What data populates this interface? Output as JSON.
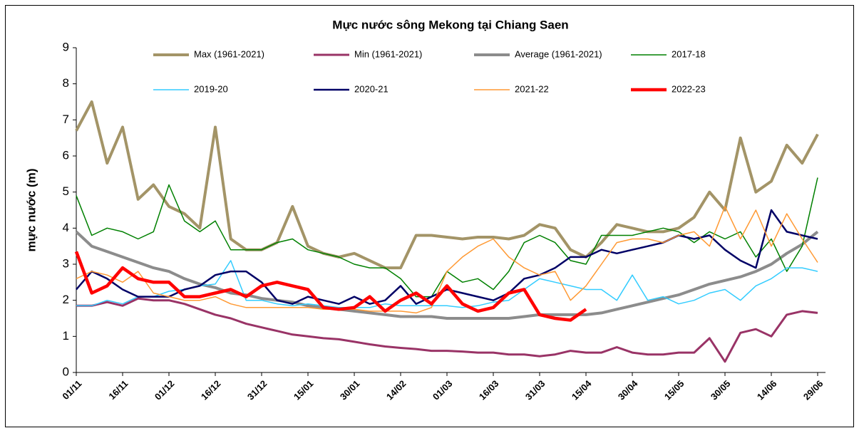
{
  "chart_data": {
    "type": "line",
    "title": "Mực nước sông Mekong tại Chiang Saen",
    "y_label": "mực  nước (m)",
    "categories": [
      "01/11",
      null,
      null,
      "16/11",
      null,
      null,
      "01/12",
      null,
      null,
      "16/12",
      null,
      null,
      "31/12",
      null,
      null,
      "15/01",
      null,
      null,
      "30/01",
      null,
      null,
      "14/02",
      null,
      null,
      "01/03",
      null,
      null,
      "16/03",
      null,
      null,
      "31/03",
      null,
      null,
      "15/04",
      null,
      null,
      "30/04",
      null,
      null,
      "15/05",
      null,
      null,
      "30/05",
      null,
      null,
      "14/06",
      null,
      null,
      "29/06"
    ],
    "ylim": [
      0,
      9
    ],
    "yticks": [
      0,
      1,
      2,
      3,
      4,
      5,
      6,
      7,
      8,
      9
    ],
    "grid": false,
    "legend": "top",
    "series": [
      {
        "name": "Max (1961-2021)",
        "color": "#a39467",
        "values": [
          6.7,
          7.5,
          5.8,
          6.8,
          4.8,
          5.2,
          4.6,
          4.4,
          4.0,
          6.8,
          3.7,
          3.4,
          3.4,
          3.6,
          4.6,
          3.5,
          3.3,
          3.2,
          3.3,
          3.1,
          2.9,
          2.9,
          3.8,
          3.8,
          3.75,
          3.7,
          3.75,
          3.75,
          3.7,
          3.8,
          4.1,
          4.0,
          3.4,
          3.2,
          3.6,
          4.1,
          4.0,
          3.9,
          3.9,
          4.0,
          4.3,
          5.0,
          4.5,
          6.5,
          5.0,
          5.3,
          6.3,
          5.8,
          6.6
        ]
      },
      {
        "name": "Min (1961-2021)",
        "color": "#993366",
        "values": [
          1.85,
          1.85,
          1.95,
          1.85,
          2.05,
          2.0,
          2.0,
          1.9,
          1.75,
          1.6,
          1.5,
          1.35,
          1.25,
          1.15,
          1.05,
          1.0,
          0.95,
          0.92,
          0.85,
          0.78,
          0.72,
          0.68,
          0.65,
          0.6,
          0.6,
          0.58,
          0.55,
          0.55,
          0.5,
          0.5,
          0.45,
          0.5,
          0.6,
          0.55,
          0.55,
          0.7,
          0.55,
          0.5,
          0.5,
          0.55,
          0.55,
          0.95,
          0.3,
          1.1,
          1.2,
          1.0,
          1.6,
          1.7,
          1.65
        ]
      },
      {
        "name": "Average (1961-2021)",
        "color": "#8c8c8c",
        "values": [
          3.9,
          3.5,
          3.35,
          3.2,
          3.05,
          2.9,
          2.8,
          2.6,
          2.45,
          2.35,
          2.2,
          2.15,
          2.05,
          2.0,
          1.95,
          1.85,
          1.8,
          1.75,
          1.7,
          1.65,
          1.6,
          1.55,
          1.55,
          1.55,
          1.5,
          1.5,
          1.5,
          1.5,
          1.5,
          1.55,
          1.6,
          1.6,
          1.6,
          1.6,
          1.65,
          1.75,
          1.85,
          1.95,
          2.05,
          2.15,
          2.3,
          2.45,
          2.55,
          2.65,
          2.8,
          3.0,
          3.3,
          3.55,
          3.9
        ]
      },
      {
        "name": "2017-18",
        "color": "#008000",
        "values": [
          4.9,
          3.8,
          4.0,
          3.9,
          3.7,
          3.9,
          5.2,
          4.2,
          3.9,
          4.2,
          3.4,
          3.4,
          3.4,
          3.6,
          3.7,
          3.4,
          3.3,
          3.2,
          3.0,
          2.9,
          2.9,
          2.6,
          2.1,
          2.1,
          2.8,
          2.5,
          2.6,
          2.3,
          2.8,
          3.6,
          3.8,
          3.6,
          3.1,
          3.0,
          3.8,
          3.8,
          3.8,
          3.9,
          4.0,
          3.9,
          3.6,
          3.9,
          3.7,
          3.9,
          3.2,
          3.7,
          2.8,
          3.5,
          5.4
        ]
      },
      {
        "name": "2019-20",
        "color": "#33ccff",
        "values": [
          1.85,
          1.85,
          2.0,
          1.9,
          2.1,
          2.1,
          2.25,
          2.3,
          2.4,
          2.45,
          3.1,
          2.0,
          2.0,
          1.9,
          1.85,
          1.9,
          1.85,
          1.8,
          1.8,
          1.8,
          1.9,
          1.85,
          1.85,
          1.85,
          1.85,
          1.8,
          1.85,
          1.95,
          2.0,
          2.3,
          2.6,
          2.5,
          2.4,
          2.3,
          2.3,
          2.0,
          2.7,
          2.0,
          2.1,
          1.9,
          2.0,
          2.2,
          2.3,
          2.0,
          2.4,
          2.6,
          2.9,
          2.9,
          2.8
        ]
      },
      {
        "name": "2020-21",
        "color": "#000066",
        "values": [
          2.3,
          2.8,
          2.6,
          2.3,
          2.1,
          2.1,
          2.1,
          2.3,
          2.4,
          2.7,
          2.8,
          2.8,
          2.5,
          2.0,
          1.9,
          2.1,
          2.0,
          1.9,
          2.1,
          1.9,
          2.0,
          2.4,
          1.9,
          2.1,
          2.3,
          2.2,
          2.1,
          2.0,
          2.2,
          2.6,
          2.7,
          2.9,
          3.2,
          3.2,
          3.4,
          3.3,
          3.4,
          3.5,
          3.6,
          3.8,
          3.7,
          3.8,
          3.4,
          3.1,
          2.9,
          4.5,
          3.9,
          3.8,
          3.7
        ]
      },
      {
        "name": "2021-22",
        "color": "#ff9933",
        "values": [
          2.6,
          2.8,
          2.7,
          2.5,
          2.8,
          2.2,
          2.1,
          2.0,
          2.0,
          2.1,
          1.9,
          1.8,
          1.8,
          1.8,
          1.8,
          1.8,
          1.75,
          1.75,
          1.75,
          1.7,
          1.7,
          1.7,
          1.65,
          1.8,
          2.8,
          3.2,
          3.5,
          3.7,
          3.2,
          2.9,
          2.7,
          2.8,
          2.0,
          2.4,
          3.0,
          3.6,
          3.7,
          3.7,
          3.6,
          3.8,
          3.9,
          3.5,
          4.6,
          3.7,
          4.5,
          3.5,
          4.4,
          3.7,
          3.05
        ]
      },
      {
        "name": "2022-23",
        "color": "#ff0000",
        "values": [
          3.35,
          2.2,
          2.4,
          2.9,
          2.6,
          2.5,
          2.5,
          2.1,
          2.1,
          2.2,
          2.3,
          2.1,
          2.4,
          2.5,
          2.4,
          2.3,
          1.8,
          1.75,
          1.8,
          2.1,
          1.7,
          2.0,
          2.2,
          1.9,
          2.4,
          1.9,
          1.7,
          1.8,
          2.2,
          2.3,
          1.6,
          1.5,
          1.45,
          1.75,
          null,
          null,
          null,
          null,
          null,
          null,
          null,
          null,
          null,
          null,
          null,
          null,
          null,
          null,
          null
        ]
      }
    ]
  }
}
